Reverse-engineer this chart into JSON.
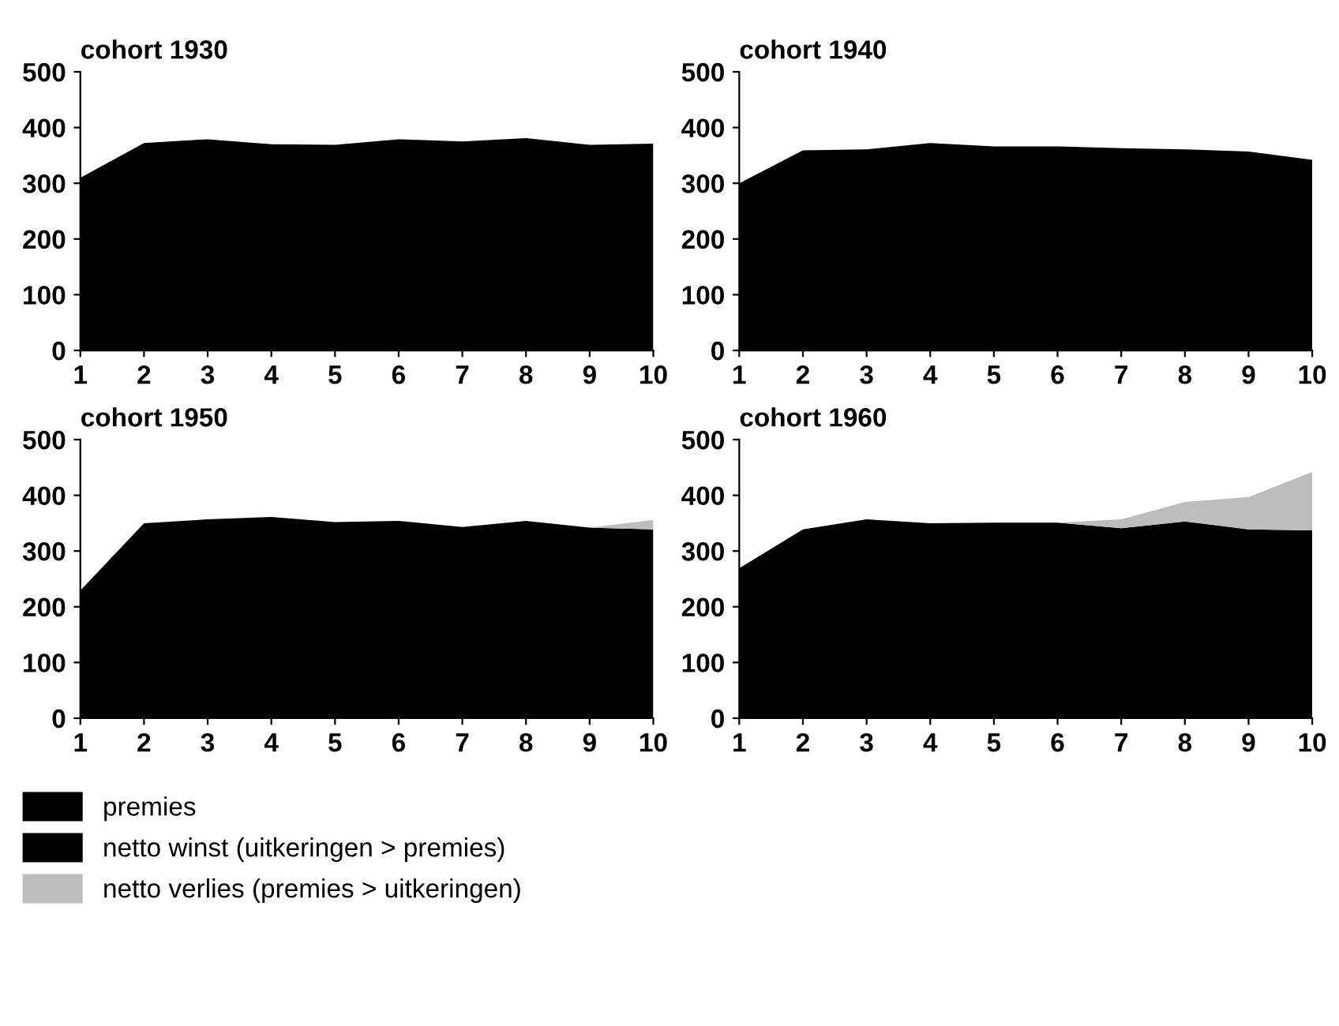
{
  "chart_data": [
    {
      "type": "area",
      "title": "cohort 1930",
      "x": [
        1,
        2,
        3,
        4,
        5,
        6,
        7,
        8,
        9,
        10
      ],
      "stacked": true,
      "xlim": [
        1,
        10
      ],
      "xticks": [
        1,
        2,
        3,
        4,
        5,
        6,
        7,
        8,
        9,
        10
      ],
      "ylim": [
        0,
        500
      ],
      "yticks": [
        0,
        100,
        200,
        300,
        400,
        500
      ],
      "grid": false,
      "legend": false,
      "series": [
        {
          "color": "#000000",
          "values": [
            310,
            372,
            379,
            370,
            369,
            379,
            375,
            381,
            369,
            371
          ]
        }
      ]
    },
    {
      "type": "area",
      "title": "cohort 1940",
      "x": [
        1,
        2,
        3,
        4,
        5,
        6,
        7,
        8,
        9,
        10
      ],
      "stacked": true,
      "xlim": [
        1,
        10
      ],
      "xticks": [
        1,
        2,
        3,
        4,
        5,
        6,
        7,
        8,
        9,
        10
      ],
      "ylim": [
        0,
        500
      ],
      "yticks": [
        0,
        100,
        200,
        300,
        400,
        500
      ],
      "grid": false,
      "legend": false,
      "series": [
        {
          "color": "#000000",
          "values": [
            300,
            359,
            361,
            372,
            366,
            366,
            363,
            361,
            357,
            342
          ]
        }
      ]
    },
    {
      "type": "area",
      "title": "cohort 1950",
      "x": [
        1,
        2,
        3,
        4,
        5,
        6,
        7,
        8,
        9,
        10
      ],
      "stacked": true,
      "xlim": [
        1,
        10
      ],
      "xticks": [
        1,
        2,
        3,
        4,
        5,
        6,
        7,
        8,
        9,
        10
      ],
      "ylim": [
        0,
        500
      ],
      "yticks": [
        0,
        100,
        200,
        300,
        400,
        500
      ],
      "grid": false,
      "legend": "bottom left",
      "series": [
        {
          "name": "premies",
          "color": "#000000",
          "values": [
            229,
            350,
            357,
            361,
            352,
            354,
            343,
            354,
            342,
            339
          ]
        },
        {
          "name": "netto winst (uitkeringen > premies)",
          "color": "#000000",
          "values": [
            null,
            null,
            null,
            null,
            null,
            null,
            null,
            null,
            null,
            null
          ]
        },
        {
          "name": "netto verlies (premies > uitkeringen)",
          "color": "#bdbdbd",
          "values": [
            0,
            0,
            0,
            0,
            0,
            0,
            0,
            0,
            0,
            17
          ]
        }
      ]
    },
    {
      "type": "area",
      "title": "cohort 1960",
      "x": [
        1,
        2,
        3,
        4,
        5,
        6,
        7,
        8,
        9,
        10
      ],
      "stacked": true,
      "xlim": [
        1,
        10
      ],
      "xticks": [
        1,
        2,
        3,
        4,
        5,
        6,
        7,
        8,
        9,
        10
      ],
      "ylim": [
        0,
        500
      ],
      "yticks": [
        0,
        100,
        200,
        300,
        400,
        500
      ],
      "grid": false,
      "legend": false,
      "series": [
        {
          "color": "#000000",
          "values": [
            269,
            339,
            357,
            350,
            351,
            351,
            341,
            353,
            339,
            337
          ]
        },
        {
          "color": "#bdbdbd",
          "values": [
            0,
            0,
            0,
            0,
            0,
            0,
            16,
            35,
            58,
            105
          ]
        }
      ]
    }
  ]
}
